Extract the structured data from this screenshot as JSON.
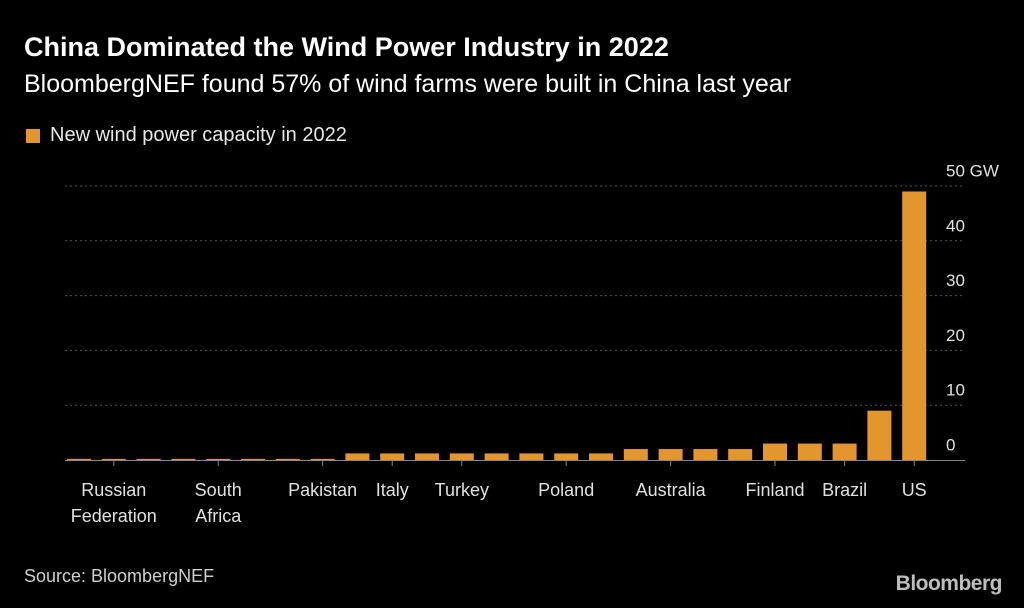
{
  "header": {
    "title": "China Dominated the Wind Power Industry in 2022",
    "subtitle": "BloombergNEF found 57% of wind farms were built in China last year"
  },
  "legend": {
    "label": "New wind power capacity in 2022"
  },
  "footer": {
    "source": "Source: BloombergNEF",
    "brand": "Bloomberg"
  },
  "colors": {
    "bar": "#e3952e",
    "grid": "#555555",
    "axis": "#888888",
    "tick_text": "#e0e0e0"
  },
  "chart_data": {
    "type": "bar",
    "title": "China Dominated the Wind Power Industry in 2022",
    "subtitle": "BloombergNEF found 57% of wind farms were built in China last year",
    "legend": [
      "New wind power capacity in 2022"
    ],
    "xlabel": "",
    "ylabel": "",
    "y_unit": "GW",
    "ylim": [
      0,
      50
    ],
    "y_ticks": [
      0,
      10,
      20,
      30,
      40,
      50
    ],
    "y_tick_labels": [
      "0",
      "10",
      "20",
      "30",
      "40",
      "50 GW"
    ],
    "x_tick_labels": [
      {
        "bar_index": 1,
        "lines": [
          "Russian",
          "Federation"
        ]
      },
      {
        "bar_index": 4,
        "lines": [
          "South",
          "Africa"
        ]
      },
      {
        "bar_index": 7,
        "lines": [
          "Pakistan"
        ]
      },
      {
        "bar_index": 9,
        "lines": [
          "Italy"
        ]
      },
      {
        "bar_index": 11,
        "lines": [
          "Turkey"
        ]
      },
      {
        "bar_index": 14,
        "lines": [
          "Poland"
        ]
      },
      {
        "bar_index": 17,
        "lines": [
          "Australia"
        ]
      },
      {
        "bar_index": 20,
        "lines": [
          "Finland"
        ]
      },
      {
        "bar_index": 22,
        "lines": [
          "Brazil"
        ]
      },
      {
        "bar_index": 24,
        "lines": [
          "US"
        ]
      }
    ],
    "values": [
      0.2,
      0.2,
      0.2,
      0.2,
      0.2,
      0.2,
      0.2,
      0.2,
      1.2,
      1.2,
      1.2,
      1.2,
      1.2,
      1.2,
      1.2,
      1.2,
      2.0,
      2.0,
      2.0,
      2.0,
      3.0,
      3.0,
      3.0,
      9.0,
      49.0
    ]
  }
}
